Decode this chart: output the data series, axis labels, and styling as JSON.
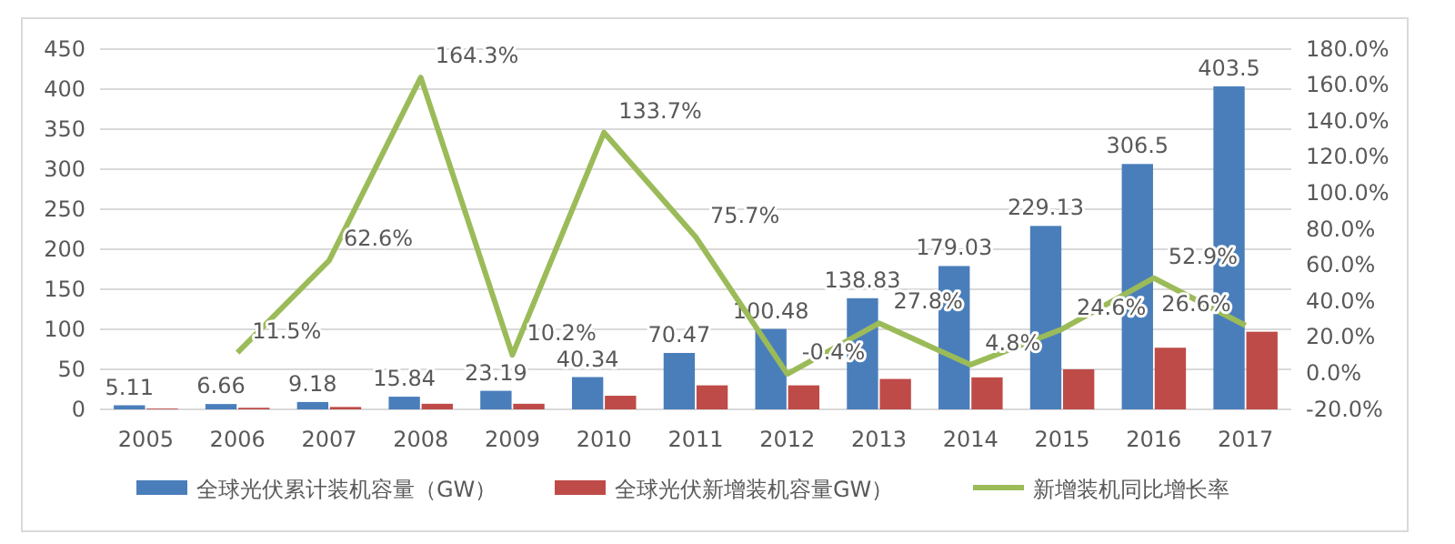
{
  "chart_data": {
    "type": "bar",
    "categories": [
      "2005",
      "2006",
      "2007",
      "2008",
      "2009",
      "2010",
      "2011",
      "2012",
      "2013",
      "2014",
      "2015",
      "2016",
      "2017"
    ],
    "series": [
      {
        "name": "全球光伏累计装机容量（GW）",
        "color": "#4a7ebb",
        "values": [
          5.11,
          6.66,
          9.18,
          15.84,
          23.19,
          40.34,
          70.47,
          100.48,
          138.83,
          179.03,
          229.13,
          306.5,
          403.5
        ],
        "value_labels": [
          "5.11",
          "6.66",
          "9.18",
          "15.84",
          "23.19",
          "40.34",
          "70.47",
          "100.48",
          "138.83",
          "179.03",
          "229.13",
          "306.5",
          "403.5"
        ]
      },
      {
        "name": "全球光伏新增装机容量GW）",
        "color": "#be4b48",
        "values": [
          1,
          2,
          3,
          7,
          7,
          17,
          30,
          30,
          38,
          40,
          50,
          77,
          97
        ]
      },
      {
        "name": "新增装机同比增长率",
        "type": "line",
        "axis": "y2",
        "color": "#9bbb59",
        "values": [
          null,
          11.5,
          62.6,
          164.3,
          10.2,
          133.7,
          75.7,
          -0.4,
          27.8,
          4.8,
          24.6,
          52.9,
          26.6
        ],
        "value_labels": [
          null,
          "11.5%",
          "62.6%",
          "164.3%",
          "10.2%",
          "133.7%",
          "75.7%",
          "-0.4%",
          "27.8%",
          "4.8%",
          "24.6%",
          "52.9%",
          "26.6%"
        ]
      }
    ],
    "ylim": [
      0,
      450
    ],
    "yticks": [
      0,
      50,
      100,
      150,
      200,
      250,
      300,
      350,
      400,
      450
    ],
    "y2lim": [
      -20,
      180
    ],
    "y2ticks": [
      {
        "value": -20,
        "label": "-20.0%"
      },
      {
        "value": 0,
        "label": "0.0%"
      },
      {
        "value": 20,
        "label": "20.0%"
      },
      {
        "value": 40,
        "label": "40.0%"
      },
      {
        "value": 60,
        "label": "60.0%"
      },
      {
        "value": 80,
        "label": "80.0%"
      },
      {
        "value": 100,
        "label": "100.0%"
      },
      {
        "value": 120,
        "label": "120.0%"
      },
      {
        "value": 140,
        "label": "140.0%"
      },
      {
        "value": 160,
        "label": "160.0%"
      },
      {
        "value": 180,
        "label": "180.0%"
      }
    ],
    "grid": "y",
    "legend": "bottom",
    "marker": "none",
    "line_style": "solid"
  }
}
